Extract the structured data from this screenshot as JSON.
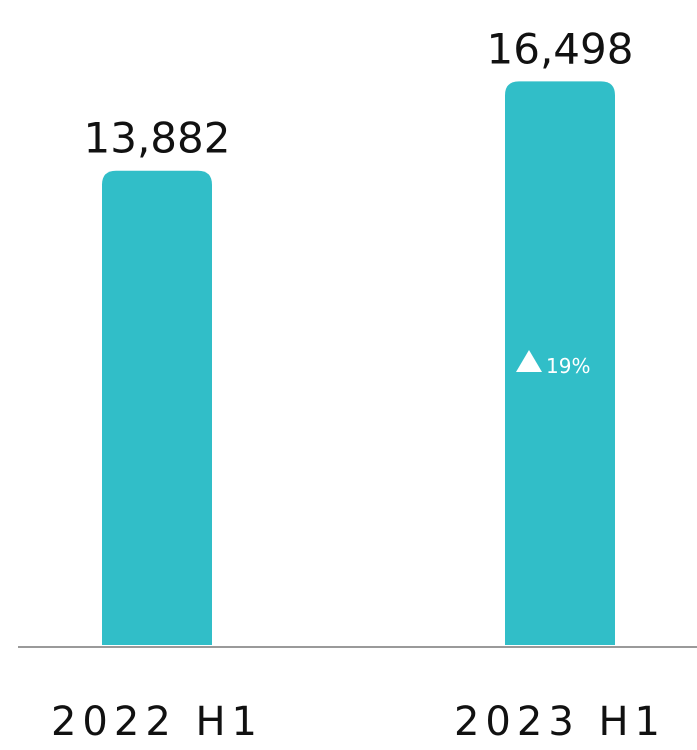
{
  "chart_data": {
    "type": "bar",
    "categories": [
      "2022 H1",
      "2023 H1"
    ],
    "values": [
      13882,
      16498
    ],
    "data_labels": [
      "13,882",
      "16,498"
    ],
    "annotation": {
      "category_index": 1,
      "icon": "triangle-up-icon",
      "text": "19%"
    },
    "colors": {
      "bar": "#31BEC8",
      "axis": "#9A9A9A",
      "text": "#111111",
      "annotation": "#FFFFFF"
    },
    "title": "",
    "xlabel": "",
    "ylabel": "",
    "ylim": [
      0,
      18000
    ],
    "grid": false
  }
}
